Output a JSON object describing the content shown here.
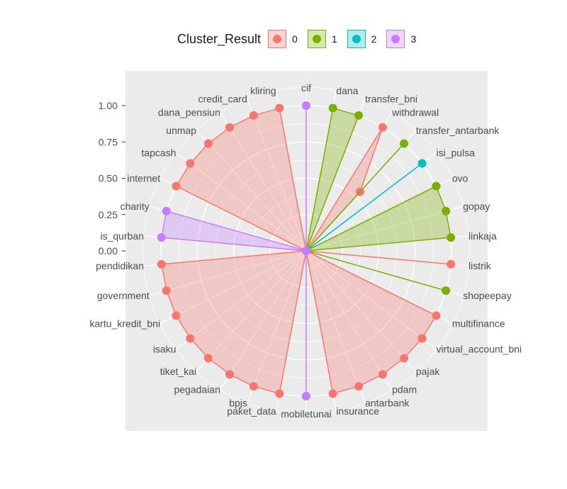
{
  "chart_data": {
    "type": "radar",
    "title": "",
    "xlabel": "",
    "ylabel": "",
    "y_ticks": [
      "0.00",
      "0.25",
      "0.50",
      "0.75",
      "1.00"
    ],
    "ylim": [
      0,
      1
    ],
    "grid": true,
    "legend": {
      "title": "Cluster_Result",
      "placement": "top",
      "entries": [
        "0",
        "1",
        "2",
        "3"
      ]
    },
    "categories": [
      "cif",
      "dana",
      "transfer_bni",
      "withdrawal",
      "transfer_antarbank",
      "isi_pulsa",
      "ovo",
      "gopay",
      "linkaja",
      "listrik",
      "shopeepay",
      "multifinance",
      "virtual_account_bni",
      "pajak",
      "pdam",
      "antarbank",
      "insurance",
      "mobiletunai",
      "paket_data",
      "bpjs",
      "pegadaian",
      "tiket_kai",
      "isaku",
      "kartu_kredit_bni",
      "government",
      "pendidikan",
      "is_qurban",
      "charity",
      "internet",
      "tapcash",
      "unmap",
      "dana_pensiun",
      "credit_card",
      "kliring"
    ],
    "series": [
      {
        "name": "0",
        "color": "#F8766D",
        "values": [
          0,
          0,
          0,
          1.0,
          0.55,
          0,
          0,
          0,
          0,
          1.0,
          0,
          1.0,
          1.0,
          1.0,
          1.0,
          1.0,
          1.0,
          0,
          1.0,
          1.0,
          1.0,
          1.0,
          1.0,
          1.0,
          1.0,
          1.0,
          0,
          0,
          1.0,
          1.0,
          1.0,
          1.0,
          1.0,
          1.0
        ]
      },
      {
        "name": "1",
        "color": "#7CAE00",
        "values": [
          0,
          1.0,
          1.0,
          0,
          1.0,
          0,
          1.0,
          1.0,
          1.0,
          0,
          1.0,
          0,
          0,
          0,
          0,
          0,
          0,
          0,
          0,
          0,
          0,
          0,
          0,
          0,
          0,
          0,
          0,
          0,
          0,
          0,
          0,
          0,
          0,
          0
        ]
      },
      {
        "name": "2",
        "color": "#00BFC4",
        "values": [
          0,
          0,
          0,
          0,
          0,
          1.0,
          0,
          0,
          0,
          0,
          0,
          0,
          0,
          0,
          0,
          0,
          0,
          0,
          0,
          0,
          0,
          0,
          0,
          0,
          0,
          0,
          0,
          0,
          0,
          0,
          0,
          0,
          0,
          0
        ]
      },
      {
        "name": "3",
        "color": "#C77CFF",
        "values": [
          1.0,
          0,
          0,
          0,
          0,
          0,
          0,
          0,
          0,
          0,
          0,
          0,
          0,
          0,
          0,
          0,
          0,
          1.0,
          0,
          0,
          0,
          0,
          0,
          0,
          0,
          0,
          1.0,
          1.0,
          0,
          0,
          0,
          0,
          0,
          0
        ]
      }
    ]
  }
}
